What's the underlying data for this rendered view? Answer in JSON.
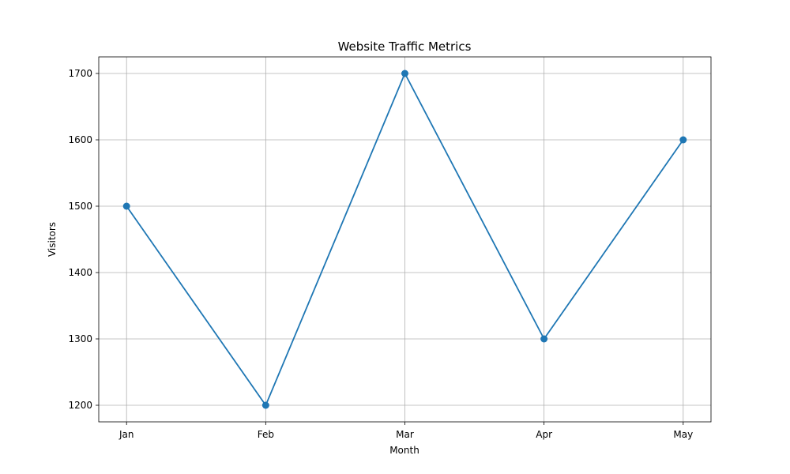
{
  "chart_data": {
    "type": "line",
    "title": "Website Traffic Metrics",
    "xlabel": "Month",
    "ylabel": "Visitors",
    "categories": [
      "Jan",
      "Feb",
      "Mar",
      "Apr",
      "May"
    ],
    "series": [
      {
        "values": [
          1500,
          1200,
          1700,
          1300,
          1600
        ],
        "color": "#1f77b4",
        "marker": "circle"
      }
    ],
    "ylim": [
      1175,
      1725
    ],
    "yticks": [
      1200,
      1300,
      1400,
      1500,
      1600,
      1700
    ],
    "grid": true
  }
}
